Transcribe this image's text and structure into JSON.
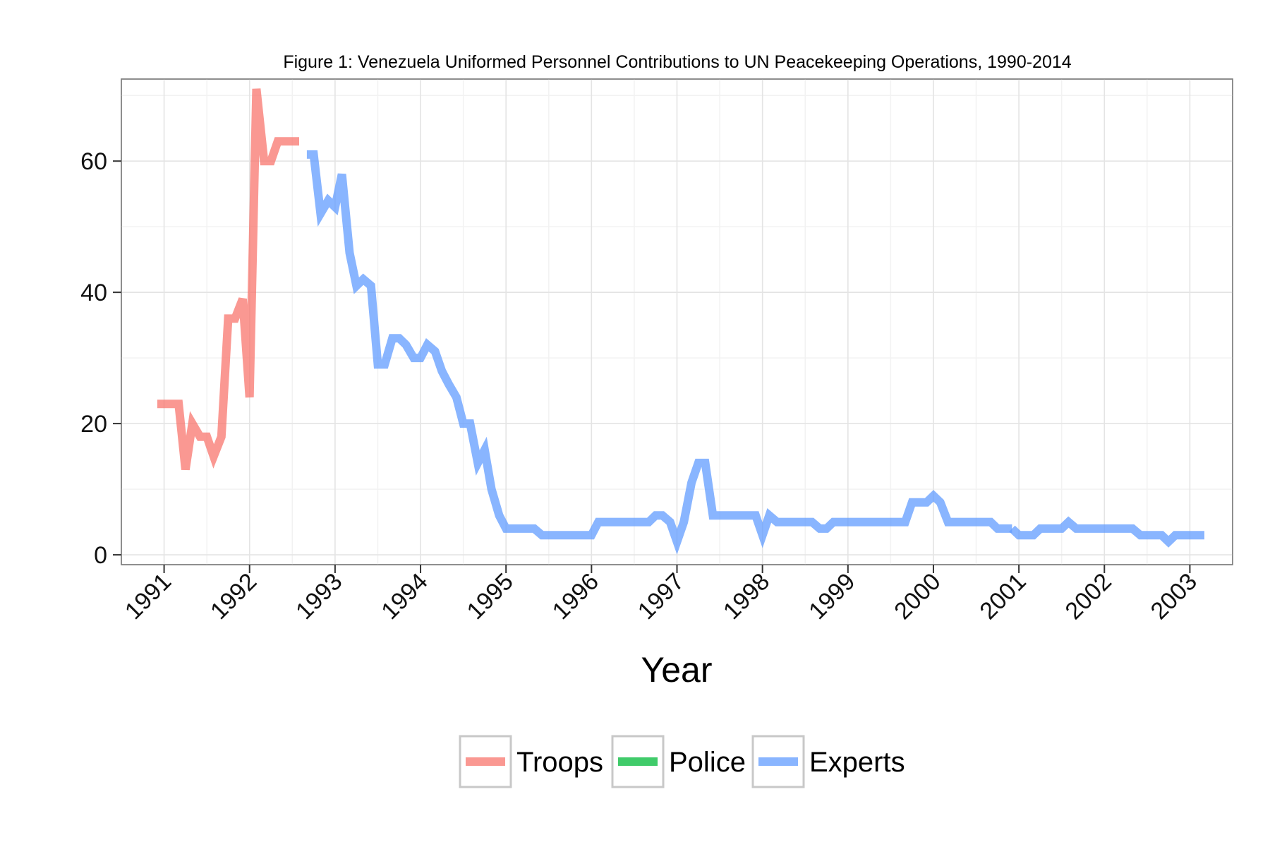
{
  "chart_data": {
    "type": "line",
    "title": "Figure 1: Venezuela Uniformed Personnel Contributions to UN Peacekeeping Operations, 1990-2014",
    "xlabel": "Year",
    "ylabel": "",
    "xlim": [
      1990.5,
      2003.5
    ],
    "ylim": [
      -1.5,
      72.5
    ],
    "x_ticks": [
      "1991",
      "1992",
      "1993",
      "1994",
      "1995",
      "1996",
      "1997",
      "1998",
      "1999",
      "2000",
      "2001",
      "2002",
      "2003"
    ],
    "y_ticks": [
      "0",
      "20",
      "40",
      "60"
    ],
    "grid": true,
    "legend_position": "bottom",
    "series": [
      {
        "name": "Troops",
        "color": "#F8766D",
        "segments": [
          [
            [
              1990.92,
              23
            ],
            [
              1991.17,
              23
            ],
            [
              1991.25,
              13
            ],
            [
              1991.33,
              20
            ],
            [
              1991.42,
              18
            ],
            [
              1991.5,
              18
            ],
            [
              1991.58,
              15
            ],
            [
              1991.67,
              18
            ],
            [
              1991.75,
              36
            ],
            [
              1991.83,
              36
            ],
            [
              1991.92,
              39
            ],
            [
              1992.0,
              24
            ],
            [
              1992.08,
              71
            ],
            [
              1992.17,
              60
            ],
            [
              1992.25,
              60
            ],
            [
              1992.33,
              63
            ],
            [
              1992.42,
              63
            ],
            [
              1992.58,
              63
            ]
          ]
        ]
      },
      {
        "name": "Police",
        "color": "#00BA38",
        "segments": []
      },
      {
        "name": "Experts",
        "color": "#619CFF",
        "segments": [
          [
            [
              1992.67,
              61
            ],
            [
              1992.75,
              61
            ],
            [
              1992.83,
              52
            ],
            [
              1992.92,
              54
            ],
            [
              1993.0,
              53
            ],
            [
              1993.08,
              58
            ],
            [
              1993.17,
              46
            ],
            [
              1993.25,
              41
            ],
            [
              1993.33,
              42
            ],
            [
              1993.42,
              41
            ],
            [
              1993.5,
              29
            ],
            [
              1993.58,
              29
            ],
            [
              1993.67,
              33
            ],
            [
              1993.75,
              33
            ],
            [
              1993.83,
              32
            ],
            [
              1993.92,
              30
            ],
            [
              1994.0,
              30
            ],
            [
              1994.08,
              32
            ],
            [
              1994.17,
              31
            ],
            [
              1994.25,
              28
            ],
            [
              1994.33,
              26
            ],
            [
              1994.42,
              24
            ],
            [
              1994.5,
              20
            ],
            [
              1994.58,
              20
            ],
            [
              1994.67,
              14
            ],
            [
              1994.75,
              16
            ],
            [
              1994.83,
              10
            ],
            [
              1994.92,
              6
            ],
            [
              1995.0,
              4
            ],
            [
              1995.08,
              4
            ],
            [
              1995.17,
              4
            ],
            [
              1995.33,
              4
            ],
            [
              1995.42,
              3
            ],
            [
              1995.5,
              3
            ],
            [
              1996.0,
              3
            ],
            [
              1996.08,
              5
            ],
            [
              1996.17,
              5
            ],
            [
              1996.67,
              5
            ],
            [
              1996.75,
              6
            ],
            [
              1996.83,
              6
            ],
            [
              1996.92,
              5
            ],
            [
              1997.0,
              2
            ],
            [
              1997.08,
              5
            ],
            [
              1997.17,
              11
            ],
            [
              1997.25,
              14
            ],
            [
              1997.33,
              14
            ],
            [
              1997.42,
              6
            ],
            [
              1997.5,
              6
            ],
            [
              1997.92,
              6
            ],
            [
              1998.0,
              3
            ],
            [
              1998.08,
              6
            ],
            [
              1998.17,
              5
            ],
            [
              1998.25,
              5
            ],
            [
              1998.58,
              5
            ],
            [
              1998.67,
              4
            ],
            [
              1998.75,
              4
            ],
            [
              1998.83,
              5
            ],
            [
              1998.92,
              5
            ],
            [
              1999.67,
              5
            ],
            [
              1999.75,
              8
            ],
            [
              1999.83,
              8
            ],
            [
              1999.92,
              8
            ],
            [
              2000.0,
              9
            ],
            [
              2000.08,
              8
            ],
            [
              2000.17,
              5
            ],
            [
              2000.25,
              5
            ],
            [
              2000.67,
              5
            ],
            [
              2000.75,
              4
            ],
            [
              2000.83,
              4
            ],
            [
              2000.92,
              4
            ]
          ],
          [
            [
              2000.92,
              4
            ],
            [
              2001.0,
              3
            ],
            [
              2001.08,
              3
            ],
            [
              2001.17,
              3
            ],
            [
              2001.25,
              4
            ],
            [
              2001.33,
              4
            ],
            [
              2001.5,
              4
            ],
            [
              2001.58,
              5
            ],
            [
              2001.67,
              4
            ],
            [
              2002.33,
              4
            ],
            [
              2002.42,
              3
            ],
            [
              2002.5,
              3
            ],
            [
              2002.67,
              3
            ],
            [
              2002.75,
              2
            ],
            [
              2002.83,
              3
            ],
            [
              2002.92,
              3
            ],
            [
              2003.17,
              3
            ]
          ]
        ]
      }
    ]
  }
}
